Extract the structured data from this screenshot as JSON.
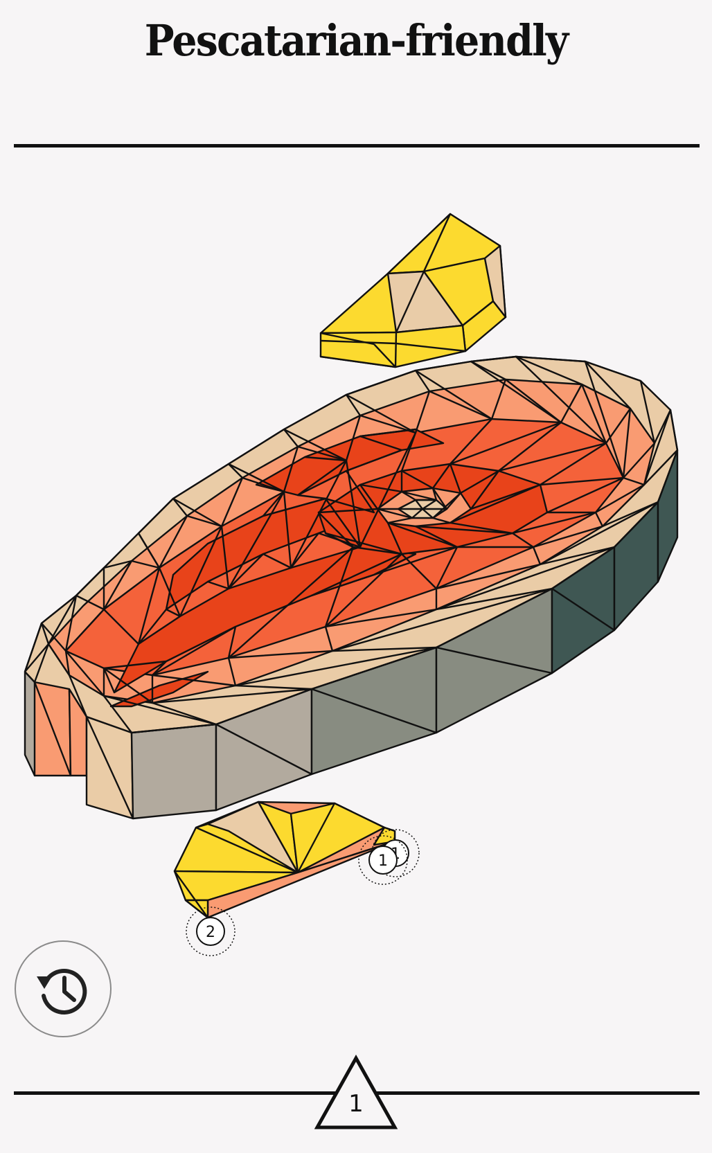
{
  "header": {
    "title": "Pescatarian-friendly"
  },
  "puzzle": {
    "subject": "salmon steak with lemon wedges",
    "colors": {
      "salmon_dark": "#e8431a",
      "salmon_mid": "#f4623a",
      "salmon_light": "#f99b72",
      "skin": "#eacca7",
      "lemon": "#fcda2f",
      "lemon_pale": "#e9cca8",
      "side_grey": "#b2aa9e",
      "side_green": "#888c81",
      "side_dark": "#3f5753",
      "outline": "#111111"
    },
    "markers": [
      {
        "name": "marker-1",
        "label": "1"
      },
      {
        "name": "marker-1-shadow",
        "label": "1"
      },
      {
        "name": "marker-2",
        "label": "2"
      }
    ]
  },
  "controls": {
    "history_icon": "history-icon"
  },
  "footer": {
    "level_number": "1"
  }
}
